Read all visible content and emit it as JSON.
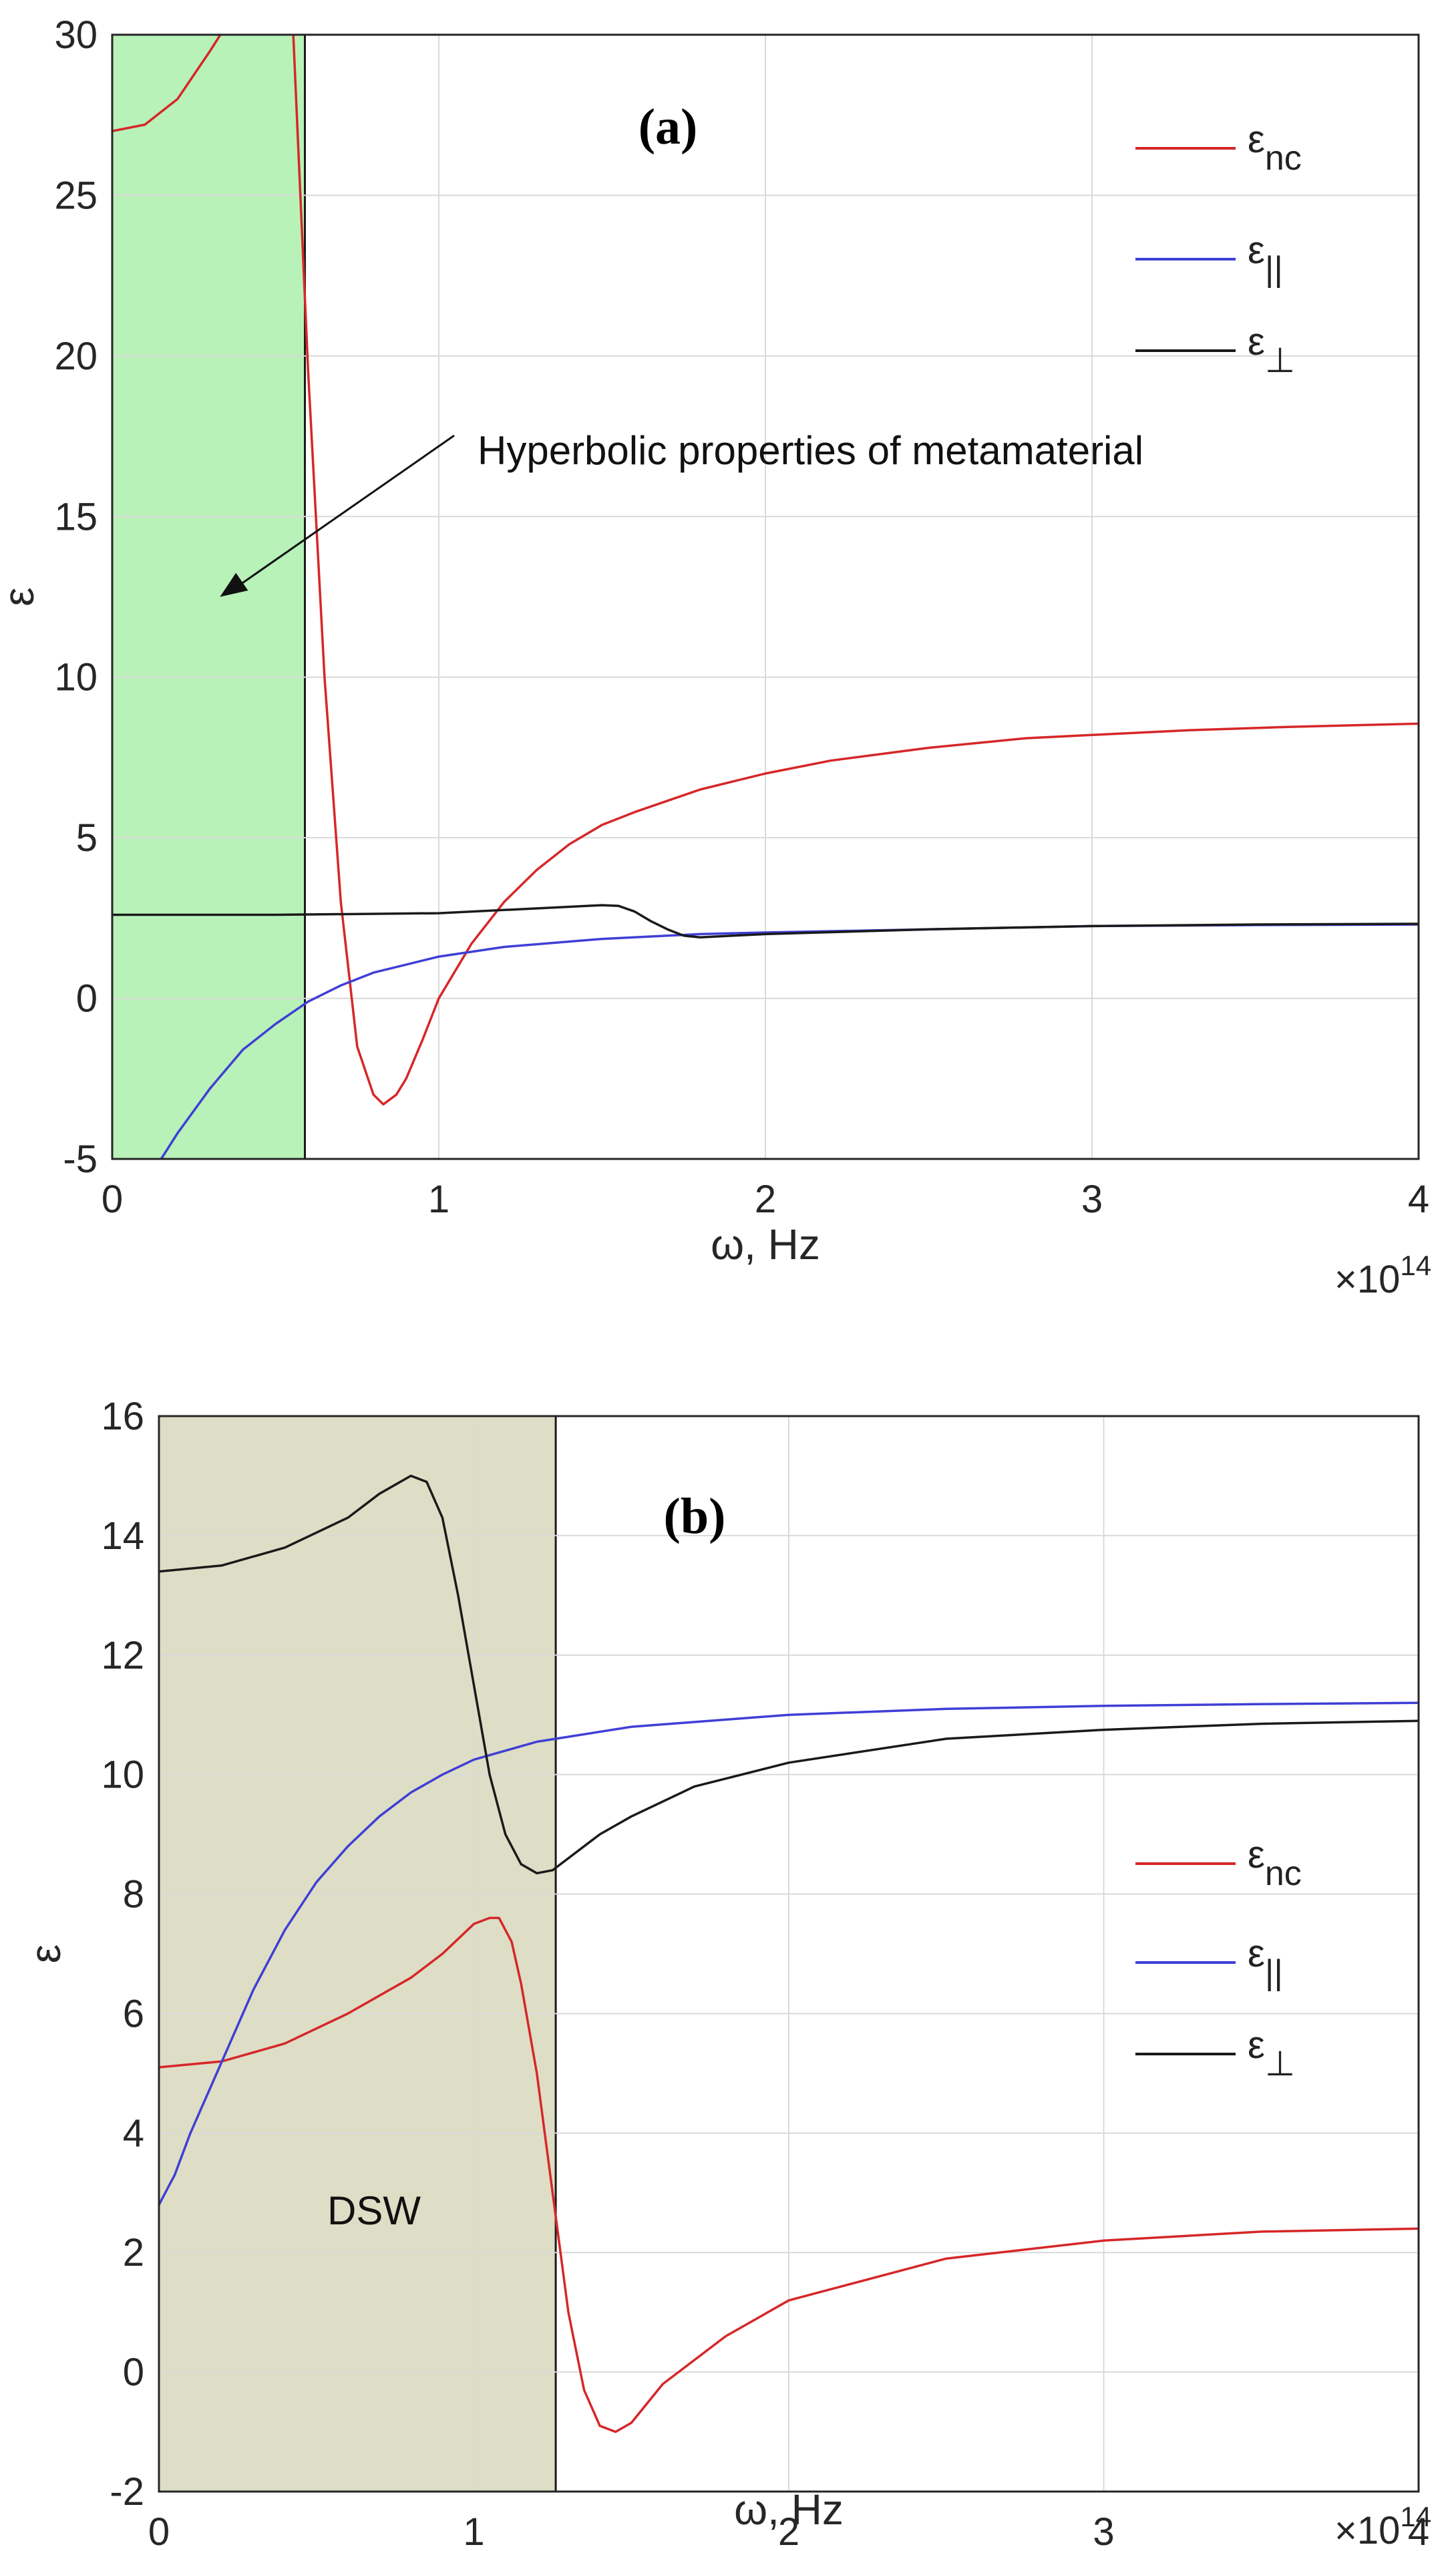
{
  "chart_data": [
    {
      "type": "line",
      "panel_label": "(a)",
      "xlabel": "ω, Hz",
      "x_multiplier": "×10",
      "x_multiplier_exp": "14",
      "ylabel": "ε",
      "xlim": [
        0,
        4
      ],
      "ylim": [
        -5,
        30
      ],
      "xticks": [
        "0",
        "1",
        "2",
        "3",
        "4"
      ],
      "yticks": [
        "-5",
        "0",
        "5",
        "10",
        "15",
        "20",
        "25",
        "30"
      ],
      "grid": true,
      "legend_position": "top-right",
      "shaded_region": {
        "x_from": 0,
        "x_to": 0.59,
        "color": "#b8f2b8"
      },
      "annotation": {
        "text": "Hyperbolic properties of metamaterial",
        "arrow_to": [
          0.33,
          12.5
        ]
      },
      "series": [
        {
          "name": "ε_nc",
          "legend_main": "ε",
          "legend_sub": "nc",
          "color": "#d62728",
          "x": [
            0,
            0.1,
            0.2,
            0.3,
            0.35,
            0.4,
            0.45,
            0.5,
            0.55,
            0.6,
            0.65,
            0.7,
            0.75,
            0.8,
            0.83,
            0.87,
            0.9,
            0.95,
            1.0,
            1.1,
            1.2,
            1.3,
            1.4,
            1.5,
            1.6,
            1.8,
            2.0,
            2.2,
            2.5,
            2.8,
            3.0,
            3.3,
            3.6,
            4.0
          ],
          "y": [
            27,
            27.2,
            28.0,
            29.5,
            30.3,
            31.5,
            32.5,
            33.0,
            31.0,
            19.5,
            10.0,
            3.0,
            -1.5,
            -3.0,
            -3.3,
            -3.0,
            -2.5,
            -1.3,
            0.0,
            1.7,
            3.0,
            4.0,
            4.8,
            5.4,
            5.8,
            6.5,
            7.0,
            7.4,
            7.8,
            8.1,
            8.2,
            8.35,
            8.45,
            8.55
          ]
        },
        {
          "name": "ε_||",
          "legend_main": "ε",
          "legend_sub": "||",
          "color": "#3f3fd6",
          "x": [
            0.15,
            0.2,
            0.3,
            0.4,
            0.5,
            0.6,
            0.7,
            0.8,
            1.0,
            1.2,
            1.5,
            1.8,
            2.0,
            2.5,
            3.0,
            3.5,
            4.0
          ],
          "y": [
            -5.0,
            -4.2,
            -2.8,
            -1.6,
            -0.8,
            -0.1,
            0.4,
            0.8,
            1.3,
            1.6,
            1.85,
            2.0,
            2.05,
            2.15,
            2.25,
            2.28,
            2.3
          ]
        },
        {
          "name": "ε_⊥",
          "legend_main": "ε",
          "legend_sub": "⊥",
          "color": "#1a1a1a",
          "x": [
            0,
            0.5,
            1.0,
            1.2,
            1.4,
            1.5,
            1.55,
            1.6,
            1.65,
            1.7,
            1.75,
            1.8,
            1.9,
            2.0,
            2.5,
            3.0,
            3.5,
            4.0
          ],
          "y": [
            2.6,
            2.6,
            2.65,
            2.75,
            2.85,
            2.9,
            2.88,
            2.7,
            2.4,
            2.15,
            1.95,
            1.9,
            1.95,
            2.0,
            2.15,
            2.25,
            2.3,
            2.32
          ]
        }
      ]
    },
    {
      "type": "line",
      "panel_label": "(b)",
      "xlabel": "ω, Hz",
      "x_multiplier": "×10",
      "x_multiplier_exp": "14",
      "ylabel": "ε",
      "xlim": [
        0,
        4
      ],
      "ylim": [
        -2,
        16
      ],
      "xticks": [
        "0",
        "1",
        "2",
        "3",
        "4"
      ],
      "yticks": [
        "-2",
        "0",
        "2",
        "4",
        "6",
        "8",
        "10",
        "12",
        "14",
        "16"
      ],
      "grid": true,
      "legend_position": "right",
      "shaded_region": {
        "x_from": 0,
        "x_to": 1.26,
        "color": "#dedec6",
        "label": "DSW"
      },
      "series": [
        {
          "name": "ε_nc",
          "legend_main": "ε",
          "legend_sub": "nc",
          "color": "#d62728",
          "x": [
            0,
            0.2,
            0.4,
            0.6,
            0.8,
            0.9,
            1.0,
            1.05,
            1.08,
            1.12,
            1.15,
            1.2,
            1.25,
            1.3,
            1.35,
            1.4,
            1.45,
            1.5,
            1.6,
            1.8,
            2.0,
            2.5,
            3.0,
            3.5,
            4.0
          ],
          "y": [
            5.1,
            5.2,
            5.5,
            6.0,
            6.6,
            7.0,
            7.5,
            7.6,
            7.6,
            7.2,
            6.5,
            5.0,
            3.0,
            1.0,
            -0.3,
            -0.9,
            -1.0,
            -0.85,
            -0.2,
            0.6,
            1.2,
            1.9,
            2.2,
            2.35,
            2.4
          ]
        },
        {
          "name": "ε_||",
          "legend_main": "ε",
          "legend_sub": "||",
          "color": "#3f3fd6",
          "x": [
            0,
            0.05,
            0.1,
            0.2,
            0.3,
            0.4,
            0.5,
            0.6,
            0.7,
            0.8,
            0.9,
            1.0,
            1.2,
            1.5,
            2.0,
            2.5,
            3.0,
            3.5,
            4.0
          ],
          "y": [
            2.8,
            3.3,
            4.0,
            5.2,
            6.4,
            7.4,
            8.2,
            8.8,
            9.3,
            9.7,
            10.0,
            10.25,
            10.55,
            10.8,
            11.0,
            11.1,
            11.15,
            11.18,
            11.2
          ]
        },
        {
          "name": "ε_⊥",
          "legend_main": "ε",
          "legend_sub": "⊥",
          "color": "#1a1a1a",
          "x": [
            0,
            0.2,
            0.4,
            0.6,
            0.7,
            0.8,
            0.85,
            0.9,
            0.95,
            1.0,
            1.05,
            1.1,
            1.15,
            1.2,
            1.25,
            1.3,
            1.4,
            1.5,
            1.7,
            2.0,
            2.5,
            3.0,
            3.5,
            4.0
          ],
          "y": [
            13.4,
            13.5,
            13.8,
            14.3,
            14.7,
            15.0,
            14.9,
            14.3,
            13.0,
            11.5,
            10.0,
            9.0,
            8.5,
            8.35,
            8.4,
            8.6,
            9.0,
            9.3,
            9.8,
            10.2,
            10.6,
            10.75,
            10.85,
            10.9
          ]
        }
      ]
    }
  ]
}
